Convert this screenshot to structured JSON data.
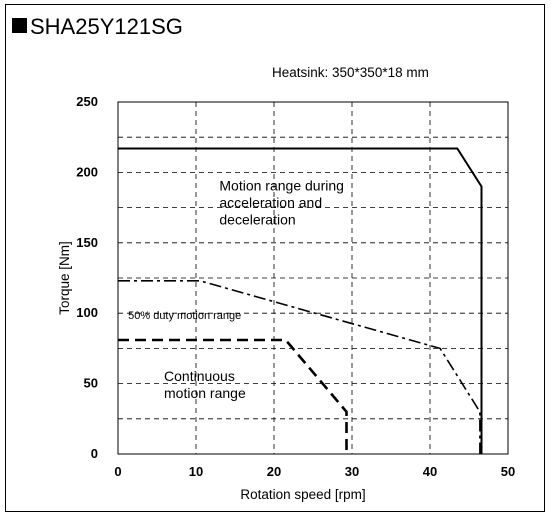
{
  "title": "SHA25Y121SG",
  "heatsink_note": "Heatsink: 350*350*18 mm",
  "chart_data": {
    "type": "line",
    "xlabel": "Rotation speed [rpm]",
    "ylabel": "Torque [Nm]",
    "xlim": [
      0,
      50
    ],
    "ylim": [
      0,
      250
    ],
    "x_ticks": [
      0,
      10,
      20,
      30,
      40,
      50
    ],
    "y_ticks": [
      0,
      50,
      100,
      150,
      200,
      250
    ],
    "grid": true,
    "y_gridlines": [
      25,
      50,
      75,
      100,
      125,
      150,
      175,
      200,
      225
    ],
    "x_gridlines": [
      10,
      20,
      30,
      40
    ],
    "series": [
      {
        "style": "solid",
        "points": [
          [
            0,
            217
          ],
          [
            43.5,
            217
          ],
          [
            46.6,
            190
          ],
          [
            46.6,
            0
          ]
        ]
      },
      {
        "style": "dash-dot",
        "points": [
          [
            0,
            123
          ],
          [
            10.5,
            123
          ],
          [
            41.3,
            75
          ],
          [
            46.4,
            30
          ],
          [
            46.4,
            0
          ]
        ]
      },
      {
        "style": "dashed",
        "points": [
          [
            0,
            81
          ],
          [
            21.5,
            81
          ],
          [
            29.3,
            30
          ],
          [
            29.3,
            0
          ]
        ]
      }
    ],
    "annotations": [
      {
        "lines": [
          "Motion range during",
          "acceleration and",
          "deceleration"
        ],
        "x": 13,
        "y": 187
      },
      {
        "lines": [
          "50% duty motion range"
        ],
        "x": 1.3,
        "y": 96
      },
      {
        "lines": [
          "Continuous",
          "motion range"
        ],
        "x": 5.9,
        "y": 52
      }
    ]
  }
}
